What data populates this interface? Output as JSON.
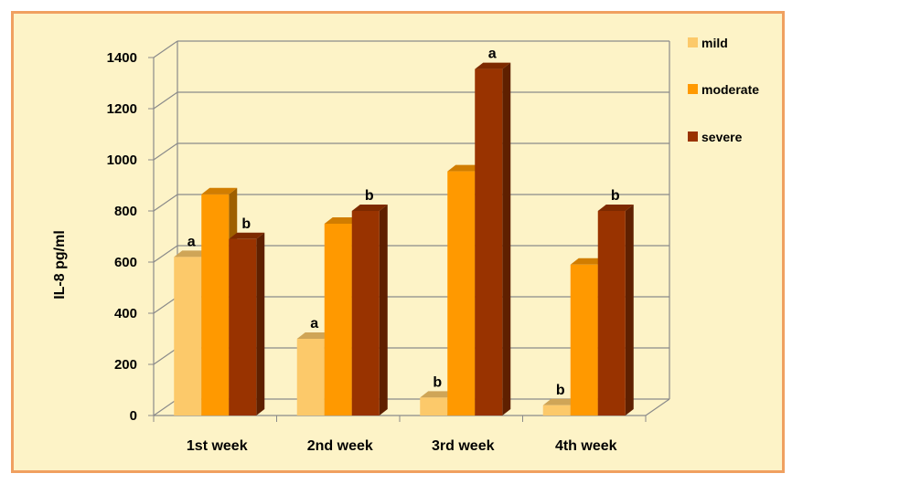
{
  "chart_data": {
    "type": "bar",
    "title": "",
    "xlabel": "",
    "ylabel": "IL-8    pg/ml",
    "ylim": [
      0,
      1400
    ],
    "yticks": [
      0,
      200,
      400,
      600,
      800,
      1000,
      1200,
      1400
    ],
    "grid": true,
    "legend_position": "right",
    "categories": [
      "1st week",
      "2nd week",
      "3rd week",
      "4th week"
    ],
    "series": [
      {
        "name": "mild",
        "color": "#fcc96a",
        "values": [
          620,
          300,
          70,
          40
        ],
        "labels": [
          "a",
          "a",
          "b",
          "b"
        ]
      },
      {
        "name": "moderate",
        "color": "#ff9900",
        "values": [
          865,
          750,
          955,
          590
        ],
        "labels": [
          "",
          "",
          "",
          ""
        ]
      },
      {
        "name": "severe",
        "color": "#993300",
        "values": [
          690,
          800,
          1355,
          800
        ],
        "labels": [
          "b",
          "b",
          "a",
          "b"
        ]
      }
    ]
  }
}
